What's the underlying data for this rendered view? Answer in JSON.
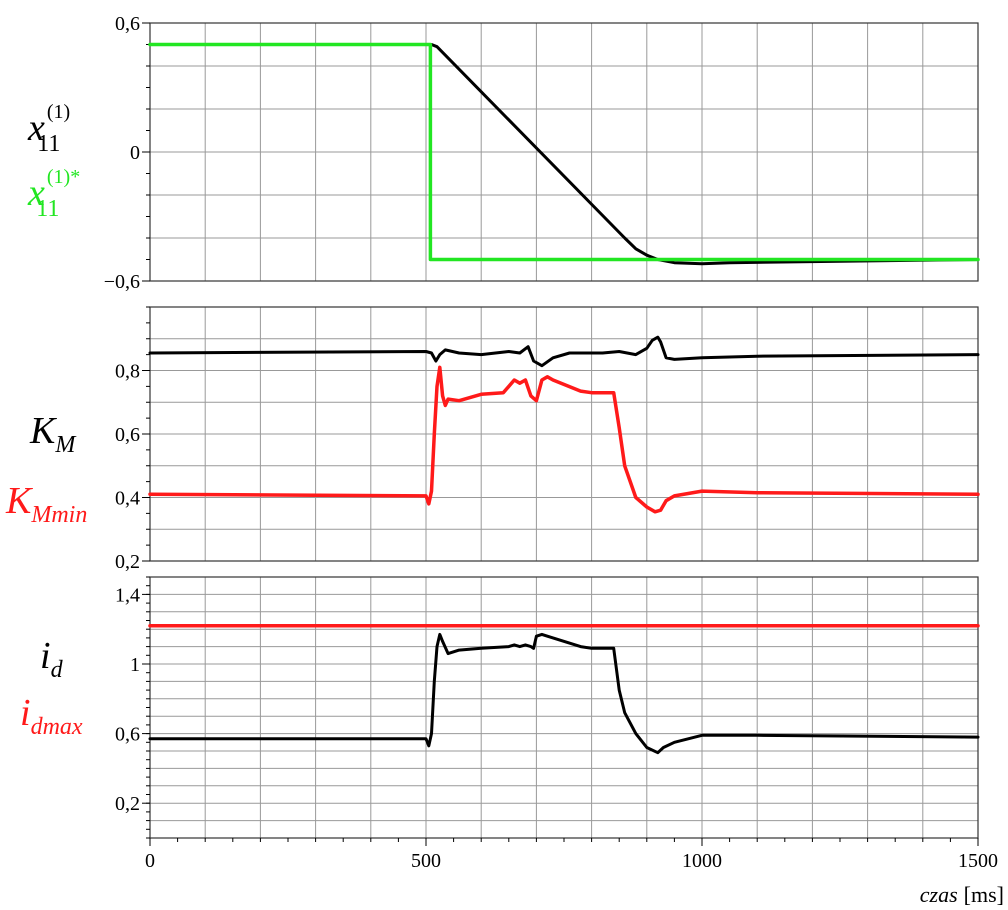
{
  "colors": {
    "black": "#000000",
    "green": "#22e622",
    "red": "#ff1a1a",
    "grid": "#999999"
  },
  "labels": {
    "x_axis_name": "czas",
    "x_axis_unit": "[ms]",
    "p1_base": "x",
    "p1_sub": "11",
    "p1_sup": "(1)",
    "p1_sup_star": "(1)*",
    "p2_base": "K",
    "p2_sub": "M",
    "p2_sub2": "Mmin",
    "p3_base": "i",
    "p3_sub": "d",
    "p3_sub2": "dmax"
  },
  "chart_data": [
    {
      "type": "line",
      "xlim": [
        0,
        1500
      ],
      "ylim": [
        -0.6,
        0.6
      ],
      "x_ticks": [
        "0",
        "500",
        "1000",
        "1500"
      ],
      "y_ticks": [
        {
          "value": 0.6,
          "label": "0,6"
        },
        {
          "value": 0,
          "label": "0"
        },
        {
          "value": -0.6,
          "label": "−0,6"
        }
      ],
      "grid": true,
      "series": [
        {
          "color": "#000000",
          "x": [
            0,
            510,
            520,
            860,
            880,
            900,
            920,
            950,
            1000,
            1050,
            1500
          ],
          "values": [
            0.5,
            0.5,
            0.49,
            -0.4,
            -0.45,
            -0.48,
            -0.5,
            -0.515,
            -0.52,
            -0.515,
            -0.5
          ]
        },
        {
          "color": "#22e622",
          "x": [
            0,
            508,
            508,
            1500
          ],
          "values": [
            0.5,
            0.5,
            -0.5,
            -0.5
          ]
        }
      ]
    },
    {
      "type": "line",
      "xlim": [
        0,
        1500
      ],
      "ylim": [
        0.2,
        1.0
      ],
      "x_ticks": [
        "0",
        "500",
        "1000",
        "1500"
      ],
      "y_ticks": [
        {
          "value": 0.8,
          "label": "0,8"
        },
        {
          "value": 0.6,
          "label": "0,6"
        },
        {
          "value": 0.4,
          "label": "0,4"
        },
        {
          "value": 0.2,
          "label": "0,2"
        }
      ],
      "grid": true,
      "series": [
        {
          "color": "#000000",
          "x": [
            0,
            500,
            510,
            518,
            525,
            535,
            560,
            600,
            650,
            670,
            685,
            695,
            710,
            730,
            760,
            820,
            850,
            880,
            900,
            910,
            920,
            925,
            935,
            950,
            1000,
            1100,
            1500
          ],
          "values": [
            0.855,
            0.86,
            0.855,
            0.83,
            0.85,
            0.865,
            0.855,
            0.85,
            0.86,
            0.855,
            0.875,
            0.83,
            0.815,
            0.84,
            0.855,
            0.855,
            0.86,
            0.85,
            0.87,
            0.895,
            0.905,
            0.89,
            0.84,
            0.835,
            0.84,
            0.845,
            0.85
          ]
        },
        {
          "color": "#ff1a1a",
          "x": [
            0,
            500,
            505,
            510,
            515,
            520,
            525,
            530,
            535,
            540,
            560,
            600,
            640,
            660,
            670,
            680,
            690,
            700,
            710,
            720,
            730,
            780,
            800,
            840,
            850,
            860,
            880,
            900,
            915,
            925,
            935,
            950,
            1000,
            1100,
            1500
          ],
          "values": [
            0.41,
            0.405,
            0.38,
            0.42,
            0.6,
            0.75,
            0.81,
            0.72,
            0.69,
            0.71,
            0.705,
            0.725,
            0.73,
            0.77,
            0.76,
            0.77,
            0.72,
            0.705,
            0.77,
            0.78,
            0.77,
            0.735,
            0.73,
            0.73,
            0.62,
            0.5,
            0.4,
            0.37,
            0.355,
            0.36,
            0.39,
            0.405,
            0.42,
            0.415,
            0.41
          ]
        }
      ]
    },
    {
      "type": "line",
      "xlim": [
        0,
        1500
      ],
      "ylim": [
        0,
        1.5
      ],
      "x_ticks": [
        "0",
        "500",
        "1000",
        "1500"
      ],
      "x_tick_values": [
        0,
        500,
        1000,
        1500
      ],
      "y_ticks": [
        {
          "value": 1.4,
          "label": "1,4"
        },
        {
          "value": 1.0,
          "label": "1"
        },
        {
          "value": 0.6,
          "label": "0,6"
        },
        {
          "value": 0.2,
          "label": "0,2"
        }
      ],
      "grid": true,
      "series": [
        {
          "color": "#000000",
          "x": [
            0,
            500,
            505,
            510,
            515,
            520,
            525,
            530,
            540,
            560,
            600,
            650,
            660,
            670,
            680,
            690,
            695,
            700,
            710,
            720,
            730,
            780,
            800,
            840,
            850,
            860,
            880,
            900,
            920,
            930,
            950,
            1000,
            1100,
            1500
          ],
          "values": [
            0.57,
            0.57,
            0.53,
            0.6,
            0.9,
            1.1,
            1.17,
            1.13,
            1.06,
            1.08,
            1.09,
            1.1,
            1.11,
            1.1,
            1.11,
            1.1,
            1.09,
            1.16,
            1.17,
            1.16,
            1.15,
            1.1,
            1.09,
            1.09,
            0.85,
            0.72,
            0.6,
            0.52,
            0.49,
            0.52,
            0.55,
            0.59,
            0.59,
            0.58
          ]
        },
        {
          "color": "#ff1a1a",
          "x": [
            0,
            1500
          ],
          "values": [
            1.22,
            1.22
          ]
        }
      ]
    }
  ]
}
